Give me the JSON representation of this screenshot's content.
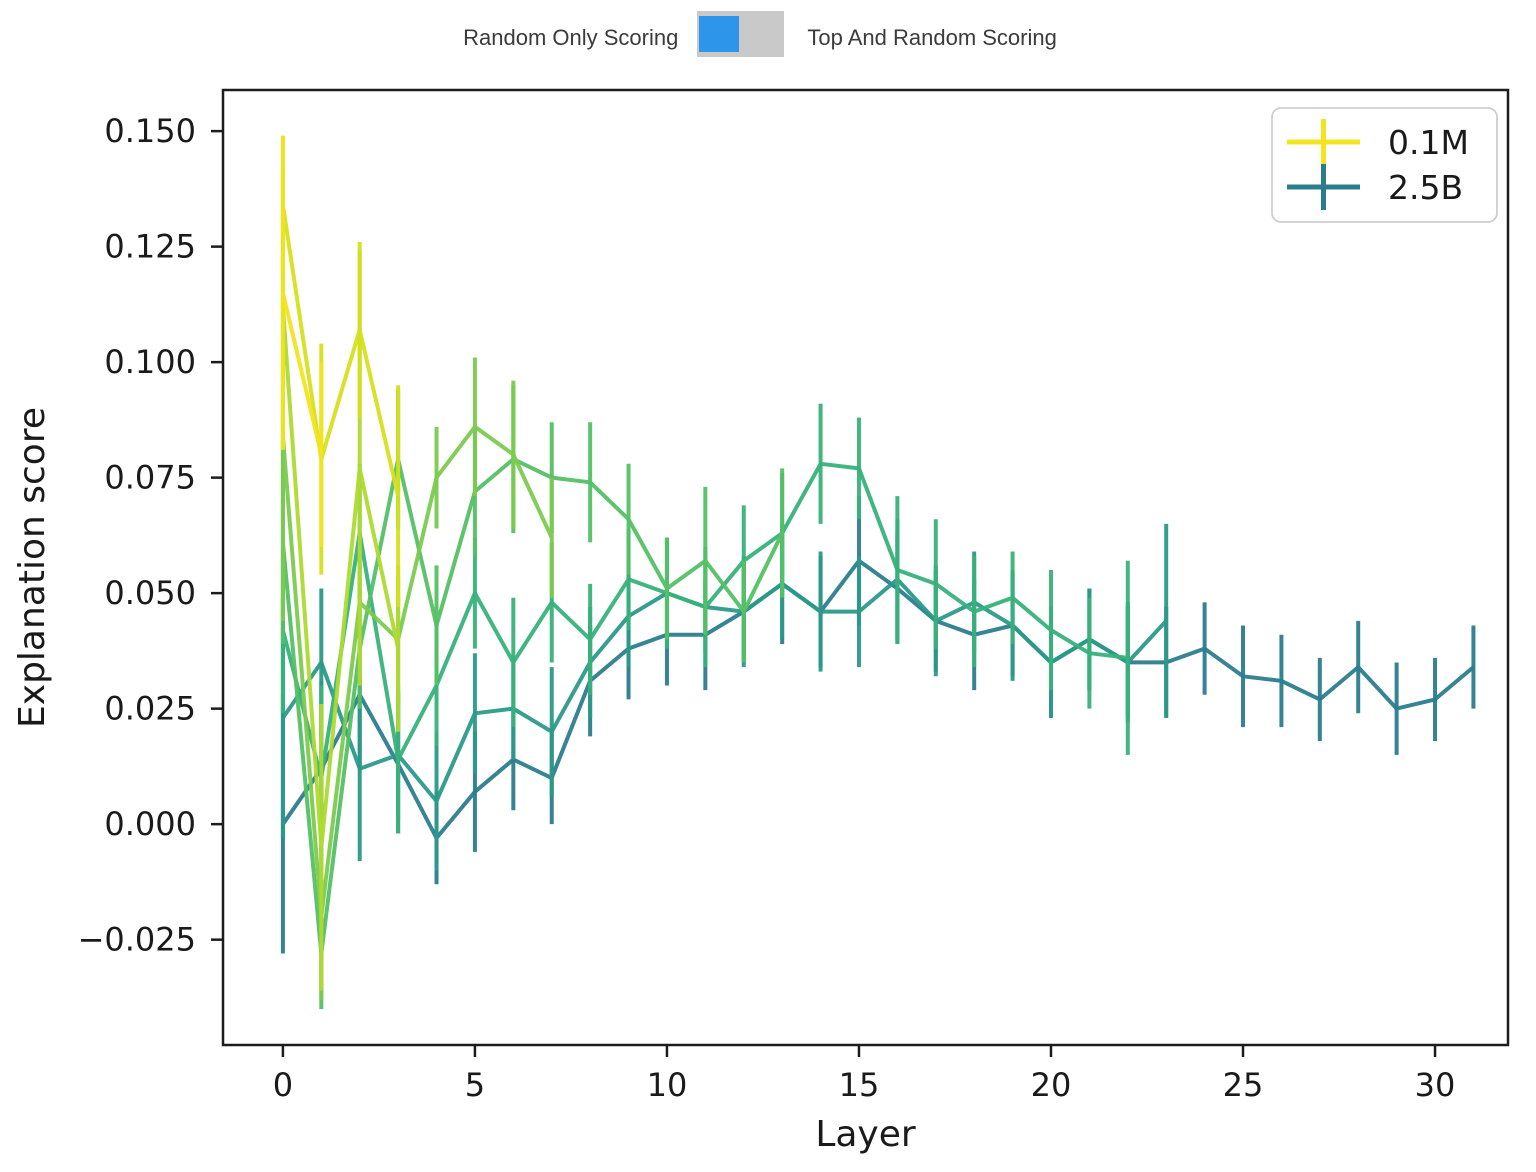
{
  "toolbar": {
    "left_label": "Random Only Scoring",
    "right_label": "Top And Random Scoring",
    "toggle_state": "left",
    "track_color": "#c9c9c9",
    "thumb_color": "#2e96ea",
    "text_color": "#3b3b3b"
  },
  "chart_data": {
    "type": "line",
    "title": "",
    "xlabel": "Layer",
    "ylabel": "Explanation score",
    "grid": false,
    "error_bars": true,
    "xlim": [
      -1.56,
      31.9
    ],
    "ylim": [
      -0.0478,
      0.1589
    ],
    "x_ticks": [
      0,
      5,
      10,
      15,
      20,
      25,
      30
    ],
    "x_tick_labels": [
      "0",
      "5",
      "10",
      "15",
      "20",
      "25",
      "30"
    ],
    "y_ticks": [
      -0.025,
      0.0,
      0.025,
      0.05,
      0.075,
      0.1,
      0.125,
      0.15
    ],
    "y_tick_labels": [
      "−0.025",
      "0.000",
      "0.025",
      "0.050",
      "0.075",
      "0.100",
      "0.125",
      "0.150"
    ],
    "legend": {
      "position": "upper right",
      "entries": [
        {
          "label": "0.1M",
          "color": "#f2e41f"
        },
        {
          "label": "2.5B",
          "color": "#2b7d8e"
        }
      ]
    },
    "series": [
      {
        "name": "0.1M",
        "color": "#f2e41f",
        "x": [
          0,
          1
        ],
        "y": [
          0.115,
          0.08
        ],
        "yerr": [
          0.034,
          0.02
        ]
      },
      {
        "name": "",
        "color": "#d5e01d",
        "x": [
          0,
          1,
          2,
          3
        ],
        "y": [
          0.134,
          0.079,
          0.107,
          0.071
        ],
        "yerr": [
          0.015,
          0.025,
          0.019,
          0.024
        ]
      },
      {
        "name": "",
        "color": "#aeda31",
        "x": [
          0,
          1,
          2,
          3
        ],
        "y": [
          0.112,
          -0.005,
          0.077,
          0.038
        ],
        "yerr": [
          0.03,
          0.031,
          0.047,
          0.018
        ]
      },
      {
        "name": "",
        "color": "#7ccb50",
        "x": [
          0,
          1,
          2,
          3,
          4,
          5,
          6,
          7
        ],
        "y": [
          0.084,
          -0.02,
          0.048,
          0.04,
          0.075,
          0.086,
          0.08,
          0.062
        ],
        "yerr": [
          0.04,
          0.018,
          0.012,
          0.014,
          0.011,
          0.015,
          0.016,
          0.013
        ]
      },
      {
        "name": "",
        "color": "#55c065",
        "x": [
          0,
          1,
          2,
          3,
          4,
          5,
          6,
          7,
          8,
          9,
          10,
          11,
          12,
          13
        ],
        "y": [
          0.061,
          -0.028,
          0.038,
          0.079,
          0.043,
          0.072,
          0.079,
          0.075,
          0.074,
          0.066,
          0.051,
          0.057,
          0.046,
          0.063
        ],
        "yerr": [
          0.022,
          0.012,
          0.013,
          0.015,
          0.013,
          0.014,
          0.016,
          0.012,
          0.013,
          0.012,
          0.011,
          0.016,
          0.011,
          0.014
        ]
      },
      {
        "name": "",
        "color": "#38b27b",
        "x": [
          0,
          1,
          2,
          3,
          4,
          5,
          6,
          7,
          8,
          9,
          10,
          11,
          12,
          13,
          14,
          15,
          16,
          17,
          18,
          19,
          20,
          21,
          22
        ],
        "y": [
          0.042,
          0.01,
          0.063,
          0.014,
          0.03,
          0.05,
          0.035,
          0.048,
          0.04,
          0.053,
          0.05,
          0.047,
          0.057,
          0.063,
          0.078,
          0.077,
          0.055,
          0.052,
          0.046,
          0.049,
          0.042,
          0.037,
          0.036
        ],
        "yerr": [
          0.018,
          0.02,
          0.015,
          0.016,
          0.013,
          0.012,
          0.014,
          0.013,
          0.012,
          0.011,
          0.012,
          0.013,
          0.012,
          0.013,
          0.013,
          0.011,
          0.016,
          0.014,
          0.012,
          0.01,
          0.013,
          0.012,
          0.021
        ]
      },
      {
        "name": "",
        "color": "#2b9a89",
        "x": [
          0,
          1,
          2,
          3,
          4,
          5,
          6,
          7,
          8,
          9,
          10,
          11,
          12,
          13,
          14,
          15,
          16,
          17,
          18,
          19,
          20,
          21,
          22,
          23
        ],
        "y": [
          0.023,
          0.035,
          0.012,
          0.015,
          0.005,
          0.024,
          0.025,
          0.02,
          0.035,
          0.045,
          0.05,
          0.047,
          0.046,
          0.052,
          0.046,
          0.046,
          0.053,
          0.044,
          0.048,
          0.043,
          0.035,
          0.04,
          0.035,
          0.044
        ],
        "yerr": [
          0.026,
          0.016,
          0.02,
          0.014,
          0.015,
          0.013,
          0.011,
          0.014,
          0.012,
          0.011,
          0.012,
          0.01,
          0.012,
          0.012,
          0.013,
          0.012,
          0.013,
          0.012,
          0.011,
          0.012,
          0.012,
          0.011,
          0.013,
          0.021
        ]
      },
      {
        "name": "2.5B",
        "color": "#2b7d8e",
        "x": [
          0,
          1,
          2,
          3,
          4,
          5,
          6,
          7,
          8,
          9,
          10,
          11,
          12,
          13,
          14,
          15,
          16,
          17,
          18,
          19,
          20,
          21,
          22,
          23,
          24,
          25,
          26,
          27,
          28,
          29,
          30,
          31
        ],
        "y": [
          0.0,
          0.012,
          0.028,
          0.013,
          -0.003,
          0.007,
          0.014,
          0.01,
          0.031,
          0.038,
          0.041,
          0.041,
          0.046,
          0.052,
          0.046,
          0.057,
          0.051,
          0.044,
          0.041,
          0.043,
          0.035,
          0.04,
          0.035,
          0.035,
          0.038,
          0.032,
          0.031,
          0.027,
          0.034,
          0.025,
          0.027,
          0.034
        ],
        "yerr": [
          0.028,
          0.019,
          0.016,
          0.015,
          0.01,
          0.013,
          0.011,
          0.01,
          0.012,
          0.011,
          0.011,
          0.012,
          0.011,
          0.013,
          0.012,
          0.014,
          0.012,
          0.011,
          0.012,
          0.011,
          0.012,
          0.011,
          0.012,
          0.012,
          0.01,
          0.011,
          0.01,
          0.009,
          0.01,
          0.01,
          0.009,
          0.009
        ]
      }
    ]
  },
  "style": {
    "axis_color": "#1c1c1c",
    "tick_label_color": "#2b2b2b",
    "legend_border_color": "#cccccc",
    "background": "#ffffff"
  }
}
